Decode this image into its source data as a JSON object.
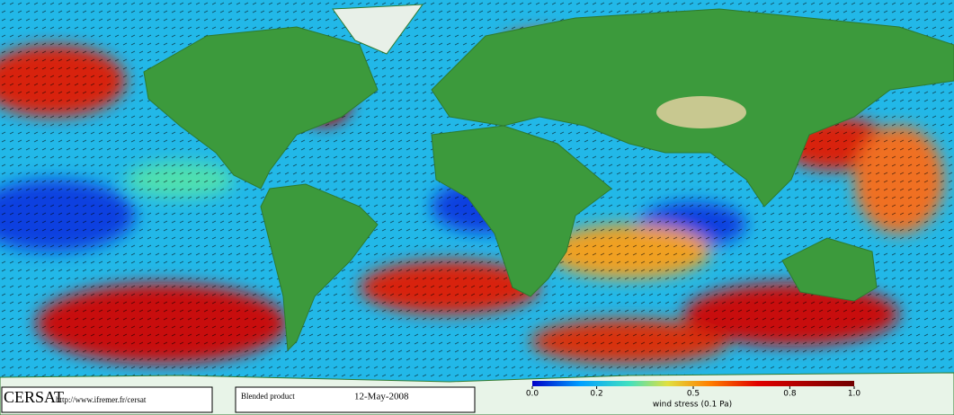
{
  "footer": {
    "logo": "CERSAT",
    "url": "http://www.ifremer.fr/cersat",
    "product": "Blended product",
    "date": "12-May-2008"
  },
  "colorbar": {
    "label": "wind stress (0.1 Pa)",
    "lim": [
      0,
      1
    ],
    "ticks": [
      {
        "value": 0,
        "label": "0.0"
      },
      0.2,
      0.5,
      0.8,
      {
        "value": 1,
        "label": "1.0"
      }
    ]
  }
}
